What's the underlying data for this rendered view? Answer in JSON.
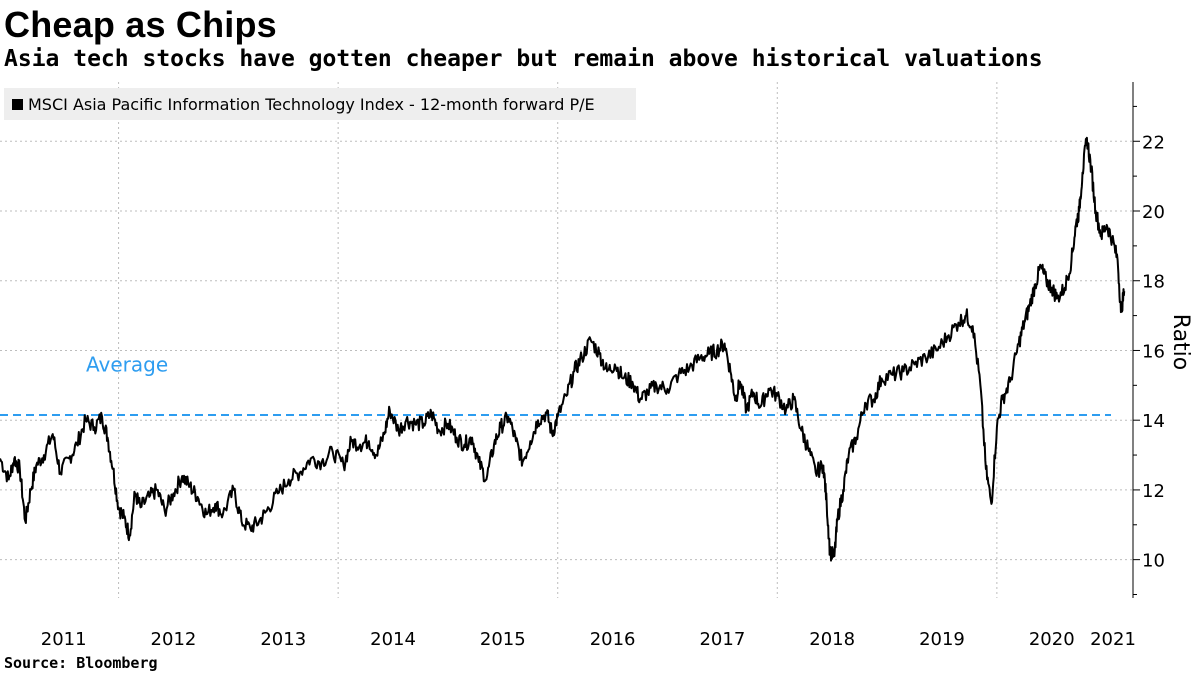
{
  "header": {
    "title": "Cheap as Chips",
    "subtitle": "Asia tech stocks have gotten cheaper but remain above historical valuations"
  },
  "footer": {
    "source": "Source: Bloomberg"
  },
  "colors": {
    "series": "#000000",
    "average": "#2e9df0",
    "grid": "#bdbdbd",
    "legend_bg": "#eeeeee"
  },
  "chart_data": {
    "type": "line",
    "title": "Cheap as Chips",
    "subtitle": "Asia tech stocks have gotten cheaper but remain above historical valuations",
    "ylabel": "Ratio",
    "xlabel": "",
    "ylim": [
      8.9,
      23.7
    ],
    "xlim": [
      2010.92,
      2021.24
    ],
    "y_ticks": [
      10,
      12,
      14,
      16,
      18,
      20,
      22
    ],
    "x_ticks": [
      "2011",
      "2012",
      "2013",
      "2014",
      "2015",
      "2016",
      "2017",
      "2018",
      "2019",
      "2020",
      "2021"
    ],
    "grid": true,
    "legend_position": "top-left",
    "series": [
      {
        "name": "MSCI Asia Pacific Information Technology Index - 12-month forward P/E",
        "x": [
          2010.92,
          2011.0,
          2011.05,
          2011.1,
          2011.15,
          2011.2,
          2011.25,
          2011.32,
          2011.4,
          2011.47,
          2011.55,
          2011.62,
          2011.7,
          2011.78,
          2011.85,
          2011.9,
          2011.95,
          2012.0,
          2012.05,
          2012.1,
          2012.15,
          2012.2,
          2012.28,
          2012.35,
          2012.42,
          2012.5,
          2012.58,
          2012.65,
          2012.72,
          2012.8,
          2012.88,
          2012.95,
          2013.05,
          2013.12,
          2013.2,
          2013.28,
          2013.35,
          2013.45,
          2013.55,
          2013.65,
          2013.75,
          2013.85,
          2013.95,
          2014.05,
          2014.12,
          2014.2,
          2014.28,
          2014.35,
          2014.42,
          2014.47,
          2014.55,
          2014.62,
          2014.7,
          2014.78,
          2014.85,
          2014.92,
          2015.0,
          2015.08,
          2015.15,
          2015.22,
          2015.28,
          2015.35,
          2015.42,
          2015.48,
          2015.55,
          2015.62,
          2015.68,
          2015.75,
          2015.82,
          2015.9,
          2015.95,
          2016.0,
          2016.08,
          2016.15,
          2016.22,
          2016.3,
          2016.38,
          2016.45,
          2016.52,
          2016.6,
          2016.68,
          2016.75,
          2016.82,
          2016.9,
          2017.0,
          2017.1,
          2017.2,
          2017.3,
          2017.38,
          2017.45,
          2017.52,
          2017.58,
          2017.62,
          2017.66,
          2017.72,
          2017.78,
          2017.85,
          2017.92,
          2018.0,
          2018.08,
          2018.15,
          2018.22,
          2018.28,
          2018.35,
          2018.42,
          2018.45,
          2018.48,
          2018.52,
          2018.55,
          2018.6,
          2018.65,
          2018.72,
          2018.8,
          2018.88,
          2018.95,
          2019.05,
          2019.15,
          2019.25,
          2019.35,
          2019.45,
          2019.55,
          2019.65,
          2019.72,
          2019.78,
          2019.85,
          2019.9,
          2019.95,
          2020.0,
          2020.05,
          2020.12,
          2020.2,
          2020.25,
          2020.3,
          2020.35,
          2020.4,
          2020.45,
          2020.5,
          2020.55,
          2020.62,
          2020.68,
          2020.72,
          2020.75,
          2020.78,
          2020.82,
          2020.86,
          2020.9,
          2020.95,
          2021.0,
          2021.05,
          2021.1,
          2021.13,
          2021.16
        ],
        "values": [
          12.9,
          12.3,
          12.9,
          12.6,
          11.1,
          12.0,
          12.7,
          13.0,
          13.6,
          12.5,
          12.9,
          13.3,
          14.0,
          13.8,
          14.1,
          13.5,
          12.6,
          11.5,
          11.2,
          10.7,
          11.9,
          11.5,
          11.8,
          12.0,
          11.4,
          11.9,
          12.4,
          12.1,
          11.8,
          11.3,
          11.6,
          11.3,
          12.0,
          11.1,
          10.9,
          11.1,
          11.4,
          11.9,
          12.3,
          12.5,
          12.9,
          12.8,
          13.1,
          12.7,
          13.4,
          13.3,
          13.4,
          13.0,
          13.6,
          14.3,
          13.7,
          14.0,
          13.9,
          13.9,
          14.2,
          13.7,
          13.9,
          13.5,
          13.3,
          13.5,
          12.8,
          12.3,
          13.3,
          13.8,
          14.1,
          13.4,
          12.8,
          13.4,
          14.0,
          14.2,
          13.6,
          14.1,
          14.7,
          15.4,
          15.8,
          16.3,
          15.9,
          15.4,
          15.6,
          15.2,
          15.1,
          14.6,
          14.8,
          15.0,
          14.9,
          15.3,
          15.5,
          15.8,
          15.9,
          16.0,
          16.2,
          15.3,
          14.6,
          15.1,
          14.3,
          14.8,
          14.4,
          14.9,
          14.7,
          14.3,
          14.6,
          13.7,
          13.2,
          12.5,
          12.7,
          11.6,
          10.2,
          10.1,
          11.2,
          12.0,
          13.0,
          13.5,
          14.5,
          14.6,
          15.2,
          15.3,
          15.4,
          15.6,
          15.8,
          16.0,
          16.4,
          16.8,
          17.0,
          16.7,
          15.0,
          12.6,
          11.6,
          13.8,
          14.6,
          15.1,
          16.2,
          16.8,
          17.3,
          17.9,
          18.4,
          18.0,
          17.8,
          17.5,
          17.8,
          18.6,
          19.6,
          20.0,
          21.1,
          22.1,
          21.2,
          20.0,
          19.3,
          19.6,
          19.2,
          18.6,
          17.1,
          17.7
        ]
      }
    ],
    "reference_lines": [
      {
        "name": "Average",
        "value": 14.15
      }
    ]
  }
}
